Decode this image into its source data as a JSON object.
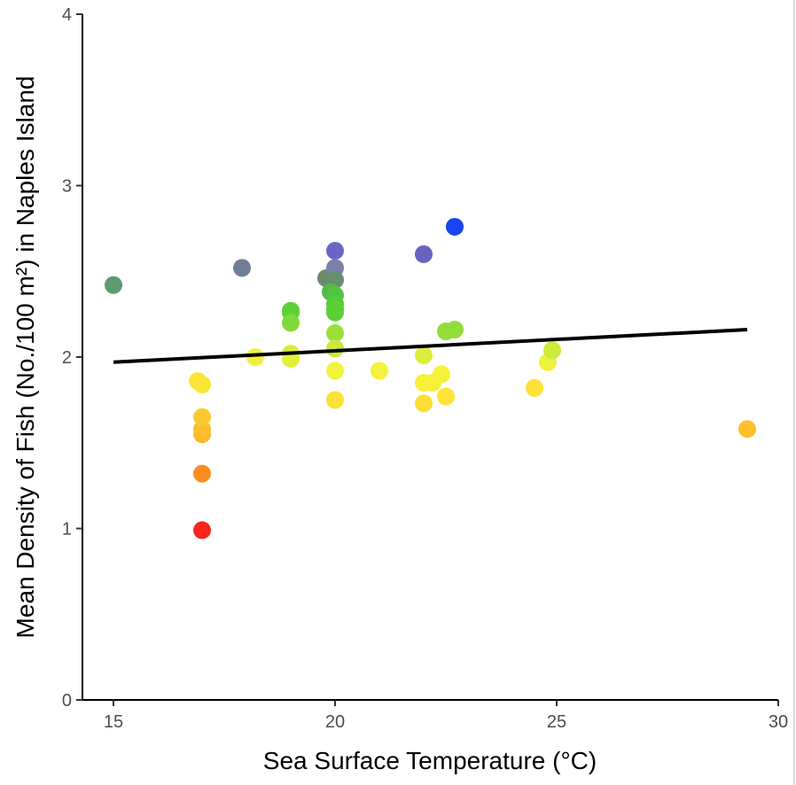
{
  "chart_data": {
    "type": "scatter",
    "title": "",
    "xlabel": "Sea Surface Temperature (°C)",
    "ylabel": "Mean Density of Fish (No./100 m²) in Naples Island",
    "xlim": [
      14.3,
      30
    ],
    "ylim": [
      0,
      4
    ],
    "x_ticks": [
      15,
      20,
      25,
      30
    ],
    "y_ticks": [
      0,
      1,
      2,
      3,
      4
    ],
    "grid": false,
    "legend": "none",
    "points": [
      {
        "x": 15.0,
        "y": 2.42,
        "color": "#5e9a6e"
      },
      {
        "x": 17.0,
        "y": 0.99,
        "color": "#f5261b"
      },
      {
        "x": 17.0,
        "y": 1.32,
        "color": "#fb8c1f"
      },
      {
        "x": 17.0,
        "y": 1.55,
        "color": "#fdb92c"
      },
      {
        "x": 17.0,
        "y": 1.58,
        "color": "#fdbf2d"
      },
      {
        "x": 17.0,
        "y": 1.65,
        "color": "#fdc92f"
      },
      {
        "x": 16.9,
        "y": 1.86,
        "color": "#fde535"
      },
      {
        "x": 17.0,
        "y": 1.84,
        "color": "#fbe635"
      },
      {
        "x": 17.9,
        "y": 2.52,
        "color": "#6e7e95"
      },
      {
        "x": 18.2,
        "y": 2.0,
        "color": "#f0f23a"
      },
      {
        "x": 19.0,
        "y": 2.27,
        "color": "#5bd136"
      },
      {
        "x": 19.0,
        "y": 2.26,
        "color": "#5bd136"
      },
      {
        "x": 19.0,
        "y": 2.2,
        "color": "#7ed939"
      },
      {
        "x": 19.0,
        "y": 2.02,
        "color": "#d6ec3a"
      },
      {
        "x": 19.0,
        "y": 1.99,
        "color": "#e4ef3a"
      },
      {
        "x": 19.8,
        "y": 2.46,
        "color": "#6b8a6c"
      },
      {
        "x": 20.0,
        "y": 2.62,
        "color": "#6d65c5"
      },
      {
        "x": 20.0,
        "y": 2.52,
        "color": "#7a81ab"
      },
      {
        "x": 20.0,
        "y": 2.45,
        "color": "#678f6f"
      },
      {
        "x": 19.9,
        "y": 2.38,
        "color": "#55b94a"
      },
      {
        "x": 20.0,
        "y": 2.36,
        "color": "#52c442"
      },
      {
        "x": 20.0,
        "y": 2.31,
        "color": "#50cc3c"
      },
      {
        "x": 20.0,
        "y": 2.28,
        "color": "#5ad036"
      },
      {
        "x": 20.0,
        "y": 2.26,
        "color": "#5ad036"
      },
      {
        "x": 20.0,
        "y": 2.14,
        "color": "#9be03a"
      },
      {
        "x": 20.0,
        "y": 2.05,
        "color": "#c9ea3b"
      },
      {
        "x": 20.0,
        "y": 1.92,
        "color": "#f3f33b"
      },
      {
        "x": 20.0,
        "y": 1.75,
        "color": "#fde137"
      },
      {
        "x": 21.0,
        "y": 1.92,
        "color": "#f3f33b"
      },
      {
        "x": 22.0,
        "y": 2.6,
        "color": "#6a63c0"
      },
      {
        "x": 22.0,
        "y": 2.01,
        "color": "#dcee3b"
      },
      {
        "x": 22.0,
        "y": 1.85,
        "color": "#f9ee39"
      },
      {
        "x": 22.2,
        "y": 1.85,
        "color": "#f9ee39"
      },
      {
        "x": 22.4,
        "y": 1.9,
        "color": "#f6f23a"
      },
      {
        "x": 22.0,
        "y": 1.73,
        "color": "#fdde36"
      },
      {
        "x": 22.5,
        "y": 1.77,
        "color": "#fde436"
      },
      {
        "x": 22.5,
        "y": 2.15,
        "color": "#92dd3a"
      },
      {
        "x": 22.7,
        "y": 2.16,
        "color": "#92dd3a"
      },
      {
        "x": 22.7,
        "y": 2.76,
        "color": "#1746ef"
      },
      {
        "x": 24.5,
        "y": 1.82,
        "color": "#fde236"
      },
      {
        "x": 24.8,
        "y": 1.97,
        "color": "#eef13b"
      },
      {
        "x": 24.9,
        "y": 2.04,
        "color": "#cdeb3b"
      },
      {
        "x": 29.3,
        "y": 1.58,
        "color": "#fdbf2d"
      }
    ],
    "trend_line": {
      "x": [
        15.0,
        29.3
      ],
      "y": [
        1.97,
        2.16
      ],
      "color": "#000000"
    }
  }
}
